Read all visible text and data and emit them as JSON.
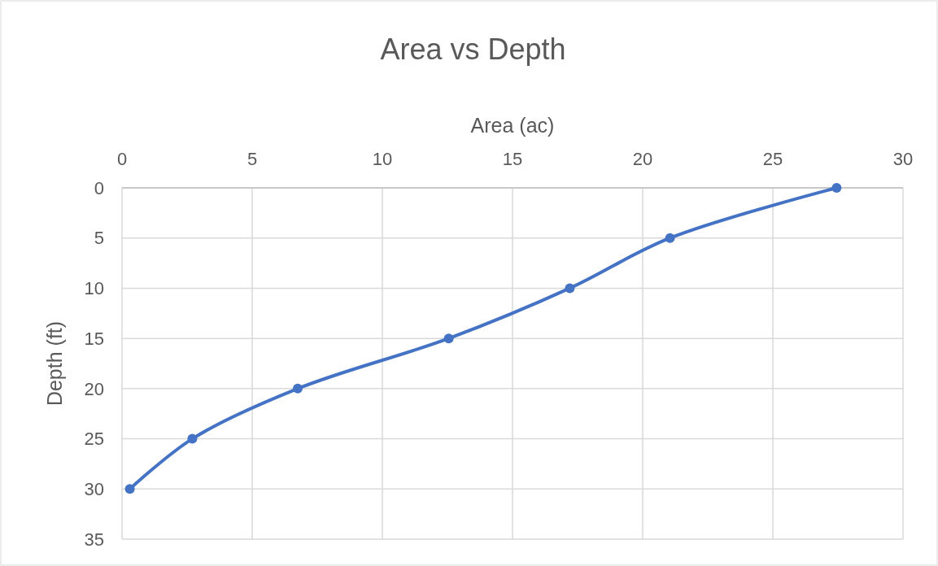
{
  "chart_data": {
    "type": "line",
    "title": "Area vs Depth",
    "xlabel": "Area (ac)",
    "ylabel": "Depth (ft)",
    "x": [
      0.3,
      2.7,
      6.75,
      12.55,
      17.2,
      21.05,
      27.45
    ],
    "series": [
      {
        "color": "#4472c4",
        "values": [
          30,
          25,
          20,
          15,
          10,
          5,
          0
        ]
      }
    ],
    "xlim": [
      0,
      30
    ],
    "xticks": [
      0,
      5,
      10,
      15,
      20,
      25,
      30
    ],
    "ylim": [
      35,
      0
    ],
    "yticks": [
      0,
      5,
      10,
      15,
      20,
      25,
      30,
      35
    ],
    "grid": true,
    "marker": "circle",
    "line_style": "solid"
  }
}
